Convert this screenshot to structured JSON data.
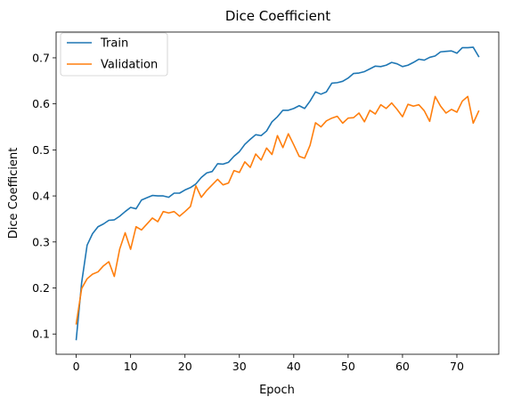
{
  "chart_data": {
    "type": "line",
    "title": "Dice Coefficient",
    "xlabel": "Epoch",
    "ylabel": "Dice Coefficient",
    "xlim": [
      -3.7,
      77.7
    ],
    "ylim": [
      0.056,
      0.756
    ],
    "xticks": [
      0,
      10,
      20,
      30,
      40,
      50,
      60,
      70
    ],
    "yticks": [
      0.1,
      0.2,
      0.3,
      0.4,
      0.5,
      0.6,
      0.7
    ],
    "grid": false,
    "legend": "upper-left",
    "series": [
      {
        "name": "Train",
        "color": "#1f77b4",
        "x": [
          0,
          1,
          2,
          3,
          4,
          5,
          6,
          7,
          8,
          9,
          10,
          11,
          12,
          13,
          14,
          15,
          16,
          17,
          18,
          19,
          20,
          21,
          22,
          23,
          24,
          25,
          26,
          27,
          28,
          29,
          30,
          31,
          32,
          33,
          34,
          35,
          36,
          37,
          38,
          39,
          40,
          41,
          42,
          43,
          44,
          45,
          46,
          47,
          48,
          49,
          50,
          51,
          52,
          53,
          54,
          55,
          56,
          57,
          58,
          59,
          60,
          61,
          62,
          63,
          64,
          65,
          66,
          67,
          68,
          69,
          70,
          71,
          72,
          73,
          74
        ],
        "values": [
          0.088,
          0.212,
          0.293,
          0.318,
          0.333,
          0.339,
          0.347,
          0.348,
          0.356,
          0.366,
          0.375,
          0.372,
          0.391,
          0.396,
          0.401,
          0.4,
          0.4,
          0.397,
          0.406,
          0.406,
          0.413,
          0.418,
          0.426,
          0.44,
          0.45,
          0.453,
          0.47,
          0.469,
          0.473,
          0.486,
          0.496,
          0.512,
          0.523,
          0.533,
          0.531,
          0.541,
          0.561,
          0.572,
          0.586,
          0.586,
          0.59,
          0.596,
          0.59,
          0.606,
          0.626,
          0.621,
          0.626,
          0.645,
          0.646,
          0.649,
          0.656,
          0.666,
          0.667,
          0.67,
          0.676,
          0.682,
          0.681,
          0.684,
          0.69,
          0.687,
          0.681,
          0.684,
          0.69,
          0.697,
          0.695,
          0.701,
          0.704,
          0.713,
          0.714,
          0.715,
          0.71,
          0.722,
          0.722,
          0.723,
          0.703
        ]
      },
      {
        "name": "Validation",
        "color": "#ff7f0e",
        "x": [
          0,
          1,
          2,
          3,
          4,
          5,
          6,
          7,
          8,
          9,
          10,
          11,
          12,
          13,
          14,
          15,
          16,
          17,
          18,
          19,
          20,
          21,
          22,
          23,
          24,
          25,
          26,
          27,
          28,
          29,
          30,
          31,
          32,
          33,
          34,
          35,
          36,
          37,
          38,
          39,
          40,
          41,
          42,
          43,
          44,
          45,
          46,
          47,
          48,
          49,
          50,
          51,
          52,
          53,
          54,
          55,
          56,
          57,
          58,
          59,
          60,
          61,
          62,
          63,
          64,
          65,
          66,
          67,
          68,
          69,
          70,
          71,
          72,
          73,
          74
        ],
        "values": [
          0.122,
          0.199,
          0.22,
          0.23,
          0.235,
          0.248,
          0.257,
          0.225,
          0.285,
          0.32,
          0.284,
          0.333,
          0.326,
          0.339,
          0.352,
          0.344,
          0.366,
          0.363,
          0.366,
          0.356,
          0.366,
          0.377,
          0.422,
          0.397,
          0.412,
          0.424,
          0.436,
          0.424,
          0.428,
          0.455,
          0.451,
          0.474,
          0.462,
          0.491,
          0.478,
          0.504,
          0.49,
          0.531,
          0.505,
          0.535,
          0.511,
          0.486,
          0.482,
          0.51,
          0.559,
          0.55,
          0.563,
          0.569,
          0.573,
          0.558,
          0.569,
          0.57,
          0.58,
          0.561,
          0.586,
          0.578,
          0.598,
          0.59,
          0.602,
          0.588,
          0.572,
          0.599,
          0.595,
          0.598,
          0.585,
          0.562,
          0.616,
          0.595,
          0.58,
          0.588,
          0.582,
          0.606,
          0.616,
          0.558,
          0.584
        ]
      }
    ]
  }
}
